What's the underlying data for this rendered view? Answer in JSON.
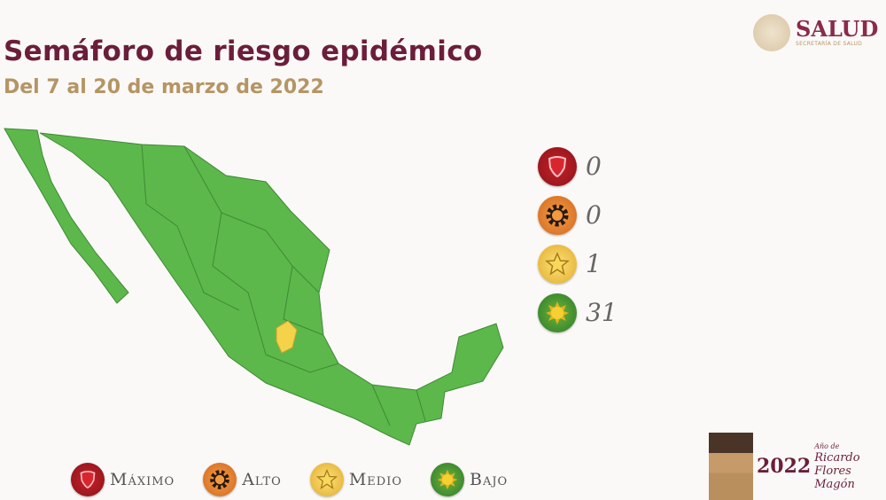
{
  "header": {
    "title": "Semáforo de riesgo epidémico",
    "subtitle": "Del 7 al 20 de marzo de 2022"
  },
  "logo": {
    "name": "SALUD",
    "subtitle": "SECRETARÍA DE SALUD"
  },
  "counts": [
    {
      "level": "Máximo",
      "icon": "shield-icon",
      "color": "#b01c24",
      "value": "0"
    },
    {
      "level": "Alto",
      "icon": "gear-icon",
      "color": "#e67a2a",
      "value": "0"
    },
    {
      "level": "Medio",
      "icon": "star-icon",
      "color": "#f2c445",
      "value": "1"
    },
    {
      "level": "Bajo",
      "icon": "sun-icon",
      "color": "#4a9a34",
      "value": "31"
    }
  ],
  "legend": [
    "Máximo",
    "Alto",
    "Medio",
    "Bajo"
  ],
  "map": {
    "default_color": "#5cb84a",
    "highlight_color": "#f4d24a",
    "states_bajo": 31,
    "states_medio": 1
  },
  "footer": {
    "year": "2022",
    "year_label": "Año de",
    "name": "Ricardo Flores Magón"
  }
}
